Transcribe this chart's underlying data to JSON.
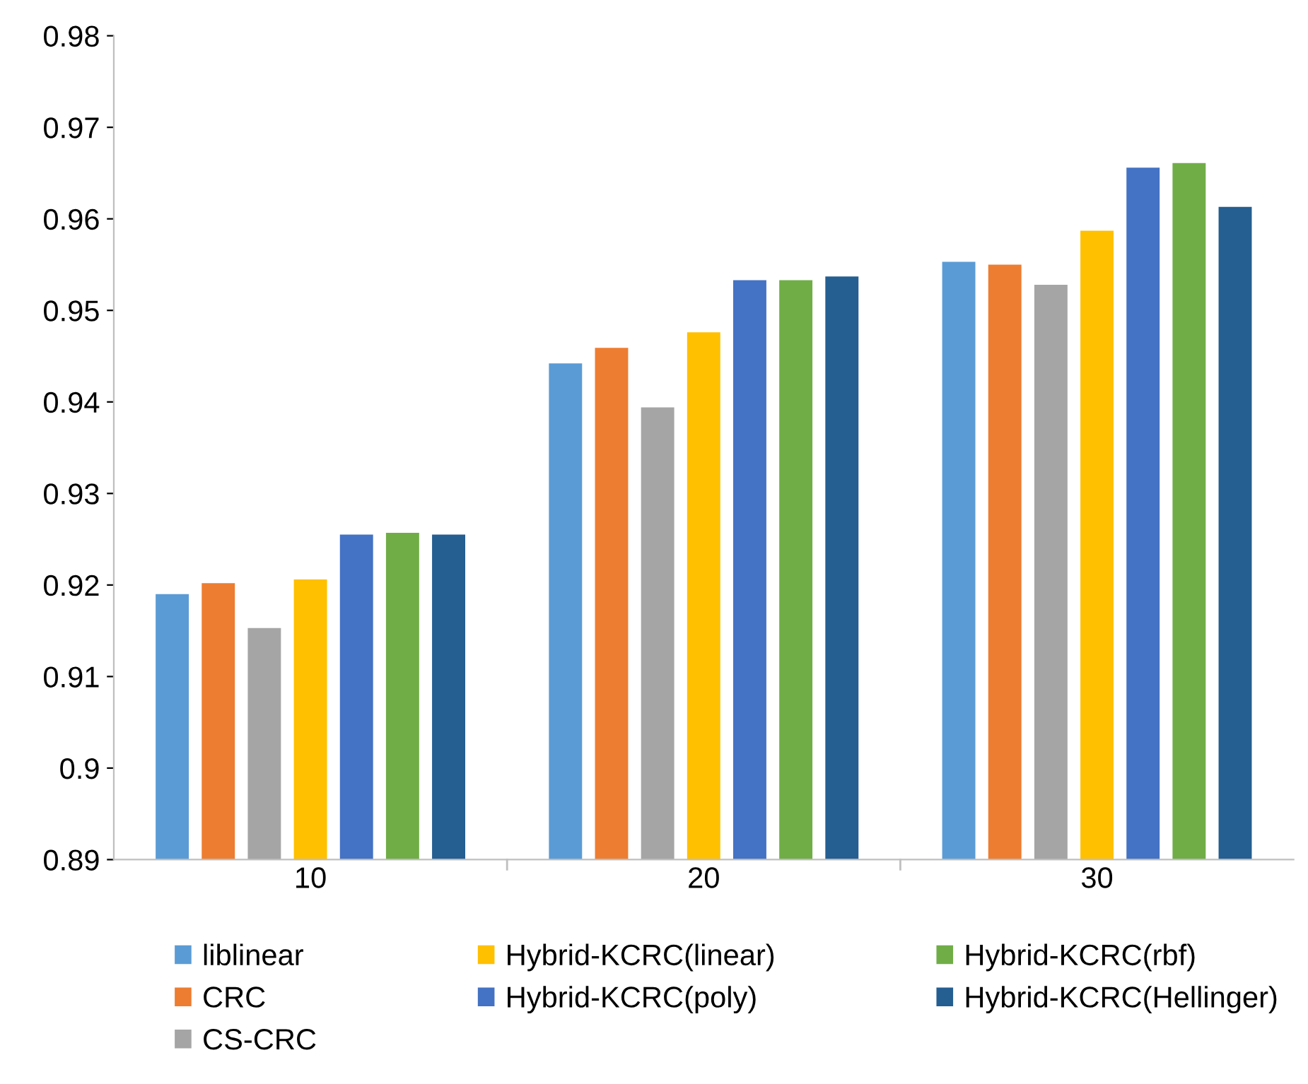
{
  "chart_data": {
    "type": "bar",
    "categories": [
      "10",
      "20",
      "30"
    ],
    "series": [
      {
        "name": "liblinear",
        "color": "#5b9bd5",
        "values": [
          0.919,
          0.9442,
          0.9553
        ]
      },
      {
        "name": "CRC",
        "color": "#ed7d31",
        "values": [
          0.9202,
          0.9459,
          0.955
        ]
      },
      {
        "name": "CS-CRC",
        "color": "#a5a5a5",
        "values": [
          0.9153,
          0.9394,
          0.9528
        ]
      },
      {
        "name": "Hybrid-KCRC(linear)",
        "color": "#ffc000",
        "values": [
          0.9206,
          0.9476,
          0.9587
        ]
      },
      {
        "name": "Hybrid-KCRC(poly)",
        "color": "#4472c4",
        "values": [
          0.9255,
          0.9533,
          0.9656
        ]
      },
      {
        "name": "Hybrid-KCRC(rbf)",
        "color": "#70ad47",
        "values": [
          0.9257,
          0.9533,
          0.9661
        ]
      },
      {
        "name": "Hybrid-KCRC(Hellinger)",
        "color": "#255e91",
        "values": [
          0.9255,
          0.9537,
          0.9613
        ]
      }
    ],
    "ylim": [
      0.89,
      0.98
    ],
    "yticks": [
      0.89,
      0.9,
      0.91,
      0.92,
      0.93,
      0.94,
      0.95,
      0.96,
      0.97,
      0.98
    ],
    "grid": false,
    "legend": "bottom"
  }
}
